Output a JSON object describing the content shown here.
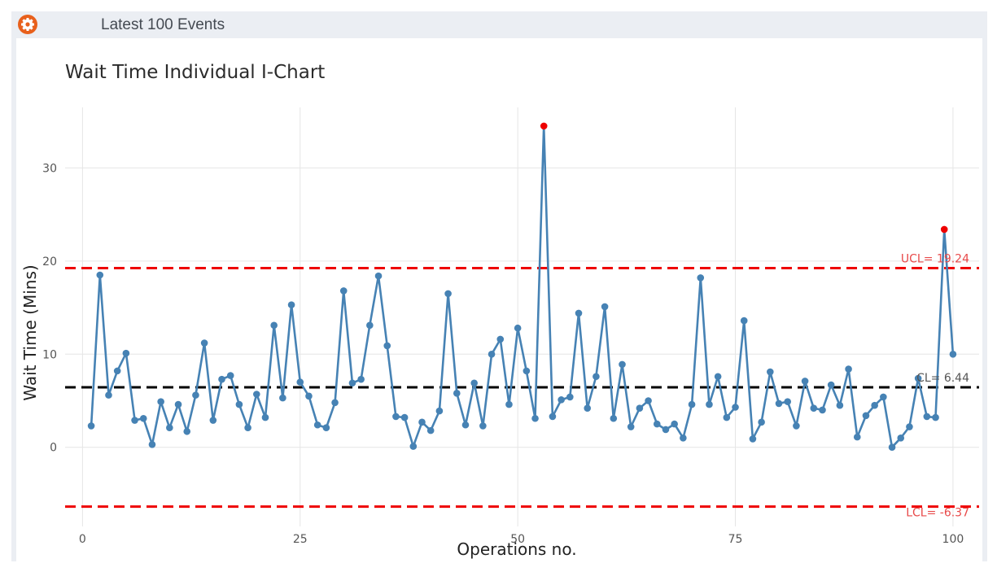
{
  "header": {
    "title": "Latest 100 Events",
    "settings_icon": "gear-icon",
    "icon_color": "#e8601c"
  },
  "chart_data": {
    "type": "line",
    "title": "Wait Time Individual I-Chart",
    "xlabel": "Operations no.",
    "ylabel": "Wait Time (Mins)",
    "xlim": [
      -2,
      103
    ],
    "ylim": [
      -8.5,
      36.5
    ],
    "x_ticks": [
      0,
      25,
      50,
      75,
      100
    ],
    "y_ticks": [
      0,
      10,
      20,
      30
    ],
    "grid": true,
    "series": [
      {
        "color": "#4682b4",
        "x": [
          1,
          2,
          3,
          4,
          5,
          6,
          7,
          8,
          9,
          10,
          11,
          12,
          13,
          14,
          15,
          16,
          17,
          18,
          19,
          20,
          21,
          22,
          23,
          24,
          25,
          26,
          27,
          28,
          29,
          30,
          31,
          32,
          33,
          34,
          35,
          36,
          37,
          38,
          39,
          40,
          41,
          42,
          43,
          44,
          45,
          46,
          47,
          48,
          49,
          50,
          51,
          52,
          53,
          54,
          55,
          56,
          57,
          58,
          59,
          60,
          61,
          62,
          63,
          64,
          65,
          66,
          67,
          68,
          69,
          70,
          71,
          72,
          73,
          74,
          75,
          76,
          77,
          78,
          79,
          80,
          81,
          82,
          83,
          84,
          85,
          86,
          87,
          88,
          89,
          90,
          91,
          92,
          93,
          94,
          95,
          96,
          97,
          98,
          99,
          100
        ],
        "values": [
          2.3,
          18.5,
          5.6,
          8.2,
          10.1,
          2.9,
          3.1,
          0.3,
          4.9,
          2.1,
          4.6,
          1.7,
          5.6,
          11.2,
          2.9,
          7.3,
          7.7,
          4.6,
          2.1,
          5.7,
          3.2,
          13.1,
          5.3,
          15.3,
          7.0,
          5.5,
          2.4,
          2.1,
          4.8,
          16.8,
          6.9,
          7.3,
          13.1,
          18.4,
          10.9,
          3.3,
          3.2,
          0.1,
          2.7,
          1.8,
          3.9,
          16.5,
          5.8,
          2.4,
          6.9,
          2.3,
          10.0,
          11.6,
          4.6,
          12.8,
          8.2,
          3.1,
          34.5,
          3.3,
          5.1,
          5.4,
          14.4,
          4.2,
          7.6,
          15.1,
          3.1,
          8.9,
          2.2,
          4.2,
          5.0,
          2.5,
          1.9,
          2.5,
          1.0,
          4.6,
          18.2,
          4.6,
          7.6,
          3.2,
          4.3,
          13.6,
          0.9,
          2.7,
          8.1,
          4.7,
          4.9,
          2.3,
          7.1,
          4.2,
          4.0,
          6.7,
          4.5,
          8.4,
          1.1,
          3.4,
          4.5,
          5.4,
          0.0,
          1.0,
          2.2,
          7.4,
          3.3,
          3.2,
          23.4,
          10.0
        ],
        "out_of_control_points": [
          53,
          99
        ],
        "out_of_control_color": "#ee0000"
      }
    ],
    "control_lines": [
      {
        "label": "UCL= 19.24",
        "value": 19.24,
        "color": "#ee0000",
        "label_color": "#e84a4a"
      },
      {
        "label": "CL= 6.44",
        "value": 6.44,
        "color": "#000000",
        "label_color": "#555555"
      },
      {
        "label": "LCL= -6.37",
        "value": -6.37,
        "color": "#ee0000",
        "label_color": "#e84a4a"
      }
    ]
  }
}
